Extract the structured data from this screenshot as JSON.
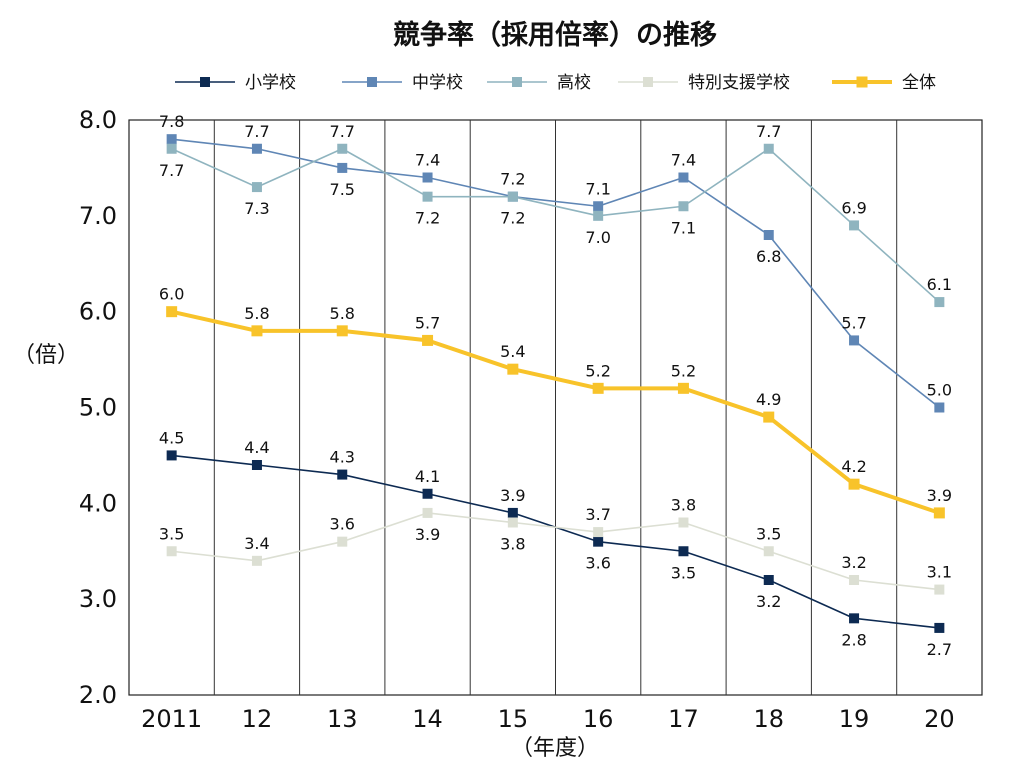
{
  "chart_data": {
    "type": "line",
    "title": "競争率（採用倍率）の推移",
    "ylabel": "（倍）",
    "xlabel": "（年度）",
    "categories": [
      "2011",
      "12",
      "13",
      "14",
      "15",
      "16",
      "17",
      "18",
      "19",
      "20"
    ],
    "ylim": [
      2.0,
      8.0
    ],
    "yticks": [
      "2.0",
      "3.0",
      "4.0",
      "5.0",
      "6.0",
      "7.0",
      "8.0"
    ],
    "grid": "vertical lines between categories",
    "legend_position": "top",
    "series": [
      {
        "name": "小学校",
        "color": "#0d2a52",
        "values": [
          4.5,
          4.4,
          4.3,
          4.1,
          3.9,
          3.6,
          3.5,
          3.2,
          2.8,
          2.7
        ],
        "labels": [
          "4.5",
          "4.4",
          "4.3",
          "4.1",
          "3.9",
          "3.6",
          "3.5",
          "3.2",
          "2.8",
          "2.7"
        ],
        "label_pos": [
          "above",
          "above",
          "above",
          "above",
          "above",
          "below",
          "below",
          "below",
          "below",
          "below"
        ]
      },
      {
        "name": "中学校",
        "color": "#5f86b5",
        "values": [
          7.8,
          7.7,
          7.5,
          7.4,
          7.2,
          7.1,
          7.4,
          6.8,
          5.7,
          5.0
        ],
        "labels": [
          "7.8",
          "7.7",
          "7.5",
          "7.4",
          "7.2",
          "7.1",
          "7.4",
          "6.8",
          "5.7",
          "5.0"
        ],
        "label_pos": [
          "above",
          "above",
          "below",
          "above",
          "above",
          "above",
          "above",
          "below",
          "above",
          "above"
        ]
      },
      {
        "name": "高校",
        "color": "#8fb4bf",
        "values": [
          7.7,
          7.3,
          7.7,
          7.2,
          7.2,
          7.0,
          7.1,
          7.7,
          6.9,
          6.1
        ],
        "labels": [
          "7.7",
          "7.3",
          "7.7",
          "7.2",
          "7.2",
          "7.0",
          "7.1",
          "7.7",
          "6.9",
          "6.1"
        ],
        "label_pos": [
          "below",
          "below",
          "above",
          "below",
          "below",
          "below",
          "below",
          "above",
          "above",
          "above"
        ]
      },
      {
        "name": "特別支援学校",
        "color": "#dcdfd3",
        "values": [
          3.5,
          3.4,
          3.6,
          3.9,
          3.8,
          3.7,
          3.8,
          3.5,
          3.2,
          3.1
        ],
        "labels": [
          "3.5",
          "3.4",
          "3.6",
          "3.9",
          "3.8",
          "3.7",
          "3.8",
          "3.5",
          "3.2",
          "3.1"
        ],
        "label_pos": [
          "above",
          "above",
          "above",
          "below",
          "below",
          "above",
          "above",
          "above",
          "above",
          "above"
        ]
      },
      {
        "name": "全体",
        "color": "#f8c32a",
        "thick": true,
        "values": [
          6.0,
          5.8,
          5.8,
          5.7,
          5.4,
          5.2,
          5.2,
          4.9,
          4.2,
          3.9
        ],
        "labels": [
          "6.0",
          "5.8",
          "5.8",
          "5.7",
          "5.4",
          "5.2",
          "5.2",
          "4.9",
          "4.2",
          "3.9"
        ],
        "label_pos": [
          "above",
          "above",
          "above",
          "above",
          "above",
          "above",
          "above",
          "above",
          "above",
          "above"
        ]
      }
    ]
  }
}
